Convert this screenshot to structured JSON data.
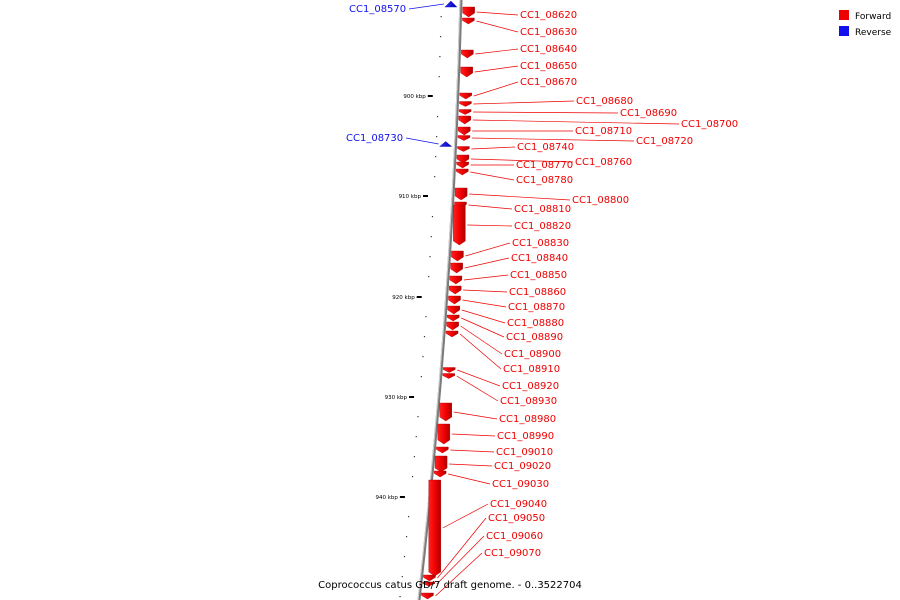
{
  "diagram_title": "Coprococcus catus GD/7 draft genome. - 0..3522704",
  "colors": {
    "forward": "#ee0000",
    "reverse": "#1111ee",
    "spine": "#888888"
  },
  "legend": {
    "forward": {
      "label": "Forward",
      "color": "#ee0000"
    },
    "reverse": {
      "label": "Reverse",
      "color": "#1111ee"
    }
  },
  "ticks": [
    "900 kbp",
    "910 kbp",
    "920 kbp",
    "930 kbp",
    "940 kbp"
  ],
  "genes": [
    {
      "id": "CC1_08570",
      "strand": "reverse"
    },
    {
      "id": "CC1_08620",
      "strand": "forward"
    },
    {
      "id": "CC1_08630",
      "strand": "forward"
    },
    {
      "id": "CC1_08640",
      "strand": "forward"
    },
    {
      "id": "CC1_08650",
      "strand": "forward"
    },
    {
      "id": "CC1_08670",
      "strand": "forward"
    },
    {
      "id": "CC1_08680",
      "strand": "forward"
    },
    {
      "id": "CC1_08690",
      "strand": "forward"
    },
    {
      "id": "CC1_08700",
      "strand": "forward"
    },
    {
      "id": "CC1_08710",
      "strand": "forward"
    },
    {
      "id": "CC1_08720",
      "strand": "forward"
    },
    {
      "id": "CC1_08730",
      "strand": "reverse"
    },
    {
      "id": "CC1_08740",
      "strand": "forward"
    },
    {
      "id": "CC1_08760",
      "strand": "forward"
    },
    {
      "id": "CC1_08770",
      "strand": "forward"
    },
    {
      "id": "CC1_08780",
      "strand": "forward"
    },
    {
      "id": "CC1_08800",
      "strand": "forward"
    },
    {
      "id": "CC1_08810",
      "strand": "forward"
    },
    {
      "id": "CC1_08820",
      "strand": "forward"
    },
    {
      "id": "CC1_08830",
      "strand": "forward"
    },
    {
      "id": "CC1_08840",
      "strand": "forward"
    },
    {
      "id": "CC1_08850",
      "strand": "forward"
    },
    {
      "id": "CC1_08860",
      "strand": "forward"
    },
    {
      "id": "CC1_08870",
      "strand": "forward"
    },
    {
      "id": "CC1_08880",
      "strand": "forward"
    },
    {
      "id": "CC1_08890",
      "strand": "forward"
    },
    {
      "id": "CC1_08900",
      "strand": "forward"
    },
    {
      "id": "CC1_08910",
      "strand": "forward"
    },
    {
      "id": "CC1_08920",
      "strand": "forward"
    },
    {
      "id": "CC1_08930",
      "strand": "forward"
    },
    {
      "id": "CC1_08980",
      "strand": "forward"
    },
    {
      "id": "CC1_08990",
      "strand": "forward"
    },
    {
      "id": "CC1_09010",
      "strand": "forward"
    },
    {
      "id": "CC1_09020",
      "strand": "forward"
    },
    {
      "id": "CC1_09030",
      "strand": "forward"
    },
    {
      "id": "CC1_09040",
      "strand": "forward"
    },
    {
      "id": "CC1_09050",
      "strand": "forward"
    },
    {
      "id": "CC1_09060",
      "strand": "forward"
    },
    {
      "id": "CC1_09070",
      "strand": "forward"
    }
  ]
}
